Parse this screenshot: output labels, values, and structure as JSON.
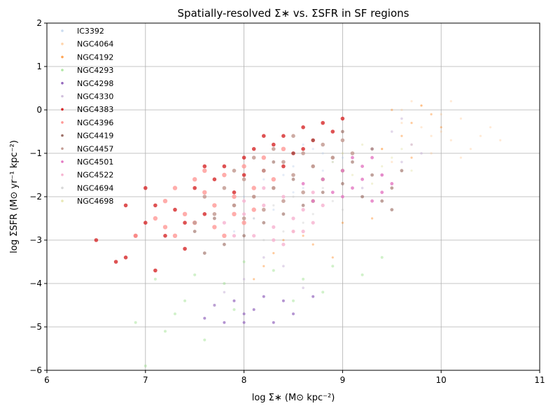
{
  "chart_data": {
    "type": "scatter",
    "title": "Spatially-resolved Σ∗ vs. ΣSFR in SF regions",
    "xlabel": "log Σ∗ (M⊙ kpc⁻²)",
    "ylabel": "log ΣSFR (M⊙ yr⁻¹ kpc⁻²)",
    "xlim": [
      6,
      11
    ],
    "ylim": [
      -6,
      2
    ],
    "xticks": [
      "6",
      "7",
      "8",
      "9",
      "10",
      "11"
    ],
    "yticks": [
      "−6",
      "−5",
      "−4",
      "−3",
      "−2",
      "−1",
      "0",
      "1",
      "2"
    ],
    "grid": true,
    "legend_position": "top-left",
    "series": [
      {
        "name": "IC3392",
        "color": "#aec7e8",
        "alpha": 0.35,
        "size": 1.6,
        "points": [
          [
            8.2,
            -1.6
          ],
          [
            8.5,
            -1.3
          ],
          [
            8.8,
            -1.0
          ],
          [
            8.0,
            -2.0
          ],
          [
            8.6,
            -1.8
          ],
          [
            8.9,
            -1.2
          ],
          [
            8.3,
            -2.3
          ],
          [
            8.7,
            -0.9
          ],
          [
            8.4,
            -1.5
          ],
          [
            9.0,
            -1.1
          ],
          [
            8.1,
            -2.5
          ],
          [
            8.5,
            -1.9
          ],
          [
            7.9,
            -2.8
          ],
          [
            8.8,
            -1.4
          ],
          [
            8.6,
            -0.8
          ]
        ]
      },
      {
        "name": "NGC4064",
        "color": "#ffbb78",
        "alpha": 0.3,
        "size": 1.6,
        "points": [
          [
            9.6,
            -0.3
          ],
          [
            9.8,
            0.1
          ],
          [
            10.0,
            -0.5
          ],
          [
            10.2,
            -0.2
          ],
          [
            9.7,
            -0.8
          ],
          [
            10.4,
            -0.6
          ],
          [
            9.9,
            -1.0
          ],
          [
            10.1,
            0.2
          ],
          [
            9.5,
            -1.2
          ],
          [
            10.3,
            -0.9
          ],
          [
            9.8,
            -0.4
          ],
          [
            10.5,
            -0.4
          ],
          [
            9.6,
            0.0
          ],
          [
            10.0,
            -0.1
          ],
          [
            10.6,
            -0.7
          ],
          [
            9.9,
            -0.6
          ],
          [
            10.2,
            -1.1
          ],
          [
            9.7,
            0.2
          ],
          [
            10.1,
            -0.7
          ],
          [
            9.4,
            -0.9
          ]
        ]
      },
      {
        "name": "NGC4192",
        "color": "#ff7f0e",
        "alpha": 0.4,
        "size": 1.6,
        "points": [
          [
            9.5,
            0.0
          ],
          [
            9.7,
            -0.3
          ],
          [
            9.9,
            -0.1
          ],
          [
            9.6,
            -0.6
          ],
          [
            9.8,
            0.1
          ],
          [
            10.0,
            -0.4
          ],
          [
            9.4,
            -0.9
          ],
          [
            9.7,
            -1.1
          ],
          [
            8.4,
            -3.0
          ],
          [
            8.3,
            -3.3
          ],
          [
            8.6,
            -2.9
          ],
          [
            8.9,
            -3.4
          ],
          [
            9.0,
            -2.6
          ],
          [
            8.2,
            -3.6
          ],
          [
            8.5,
            -2.8
          ],
          [
            9.3,
            -2.5
          ],
          [
            8.1,
            -3.9
          ],
          [
            8.7,
            -3.1
          ]
        ]
      },
      {
        "name": "NGC4293",
        "color": "#98df8a",
        "alpha": 0.45,
        "size": 2.0,
        "points": [
          [
            7.0,
            -5.9
          ],
          [
            7.2,
            -5.1
          ],
          [
            7.4,
            -4.4
          ],
          [
            7.6,
            -5.3
          ],
          [
            7.8,
            -4.0
          ],
          [
            6.9,
            -4.9
          ],
          [
            7.5,
            -3.8
          ],
          [
            8.0,
            -3.5
          ],
          [
            8.3,
            -3.7
          ],
          [
            8.6,
            -3.9
          ],
          [
            8.9,
            -3.6
          ],
          [
            9.2,
            -3.8
          ],
          [
            8.8,
            -4.2
          ],
          [
            8.5,
            -4.4
          ],
          [
            7.3,
            -4.7
          ],
          [
            7.9,
            -4.6
          ],
          [
            7.1,
            -3.9
          ],
          [
            9.4,
            -3.4
          ]
        ]
      },
      {
        "name": "NGC4298",
        "color": "#9467bd",
        "alpha": 0.7,
        "size": 2.0,
        "points": [
          [
            7.7,
            -4.5
          ],
          [
            7.8,
            -4.9
          ],
          [
            7.9,
            -4.4
          ],
          [
            8.0,
            -4.7
          ],
          [
            8.1,
            -4.6
          ],
          [
            8.3,
            -4.9
          ],
          [
            8.5,
            -4.7
          ],
          [
            8.7,
            -4.3
          ],
          [
            7.6,
            -4.8
          ],
          [
            8.2,
            -4.3
          ],
          [
            8.0,
            -4.9
          ],
          [
            8.4,
            -4.4
          ]
        ]
      },
      {
        "name": "NGC4330",
        "color": "#c5b0d5",
        "alpha": 0.5,
        "size": 1.8,
        "points": [
          [
            9.3,
            -0.9
          ],
          [
            9.5,
            -0.5
          ],
          [
            9.6,
            -1.2
          ],
          [
            9.7,
            -0.8
          ],
          [
            9.4,
            -1.5
          ],
          [
            9.6,
            -0.2
          ],
          [
            9.8,
            -1.0
          ],
          [
            9.2,
            -1.8
          ],
          [
            8.2,
            -3.4
          ],
          [
            8.4,
            -3.6
          ],
          [
            7.8,
            -4.2
          ],
          [
            8.6,
            -4.1
          ],
          [
            8.0,
            -3.9
          ],
          [
            7.7,
            -4.5
          ]
        ]
      },
      {
        "name": "NGC4383",
        "color": "#d62728",
        "alpha": 0.8,
        "size": 2.8,
        "points": [
          [
            6.5,
            -3.0
          ],
          [
            6.7,
            -3.5
          ],
          [
            6.8,
            -2.2
          ],
          [
            6.9,
            -2.9
          ],
          [
            7.0,
            -2.6
          ],
          [
            7.1,
            -2.2
          ],
          [
            7.2,
            -2.9
          ],
          [
            7.3,
            -2.3
          ],
          [
            7.4,
            -2.6
          ],
          [
            7.5,
            -1.8
          ],
          [
            7.6,
            -2.4
          ],
          [
            7.7,
            -1.6
          ],
          [
            7.8,
            -1.3
          ],
          [
            7.9,
            -1.9
          ],
          [
            8.0,
            -1.1
          ],
          [
            8.1,
            -0.9
          ],
          [
            8.2,
            -1.4
          ],
          [
            8.3,
            -0.8
          ],
          [
            8.4,
            -0.6
          ],
          [
            8.5,
            -1.0
          ],
          [
            8.6,
            -0.4
          ],
          [
            8.7,
            -0.7
          ],
          [
            8.8,
            -0.3
          ],
          [
            8.9,
            -0.5
          ],
          [
            9.0,
            -0.2
          ],
          [
            8.6,
            -0.9
          ],
          [
            8.4,
            -1.3
          ],
          [
            8.2,
            -0.6
          ],
          [
            8.0,
            -1.5
          ],
          [
            7.6,
            -1.3
          ],
          [
            6.8,
            -3.4
          ],
          [
            7.1,
            -3.7
          ],
          [
            7.4,
            -3.2
          ],
          [
            7.0,
            -1.8
          ]
        ]
      },
      {
        "name": "NGC4396",
        "color": "#ff9896",
        "alpha": 0.8,
        "size": 3.2,
        "points": [
          [
            6.9,
            -2.9
          ],
          [
            7.1,
            -2.5
          ],
          [
            7.2,
            -2.1
          ],
          [
            7.3,
            -1.8
          ],
          [
            7.4,
            -2.4
          ],
          [
            7.5,
            -1.6
          ],
          [
            7.6,
            -1.9
          ],
          [
            7.7,
            -2.2
          ],
          [
            7.8,
            -1.5
          ],
          [
            7.9,
            -2.0
          ],
          [
            8.0,
            -1.3
          ],
          [
            8.1,
            -1.8
          ],
          [
            8.2,
            -1.1
          ],
          [
            8.3,
            -1.6
          ],
          [
            8.4,
            -0.9
          ],
          [
            7.5,
            -2.6
          ],
          [
            7.3,
            -2.9
          ],
          [
            7.7,
            -2.7
          ],
          [
            7.9,
            -2.4
          ],
          [
            8.1,
            -2.3
          ],
          [
            7.2,
            -2.7
          ],
          [
            7.6,
            -1.4
          ],
          [
            8.0,
            -2.6
          ],
          [
            7.8,
            -2.9
          ]
        ]
      },
      {
        "name": "NGC4419",
        "color": "#8c564b",
        "alpha": 0.55,
        "size": 2.4,
        "points": [
          [
            7.5,
            -2.8
          ],
          [
            7.7,
            -2.5
          ],
          [
            7.9,
            -2.2
          ],
          [
            8.1,
            -2.0
          ],
          [
            8.3,
            -1.8
          ],
          [
            8.5,
            -1.6
          ],
          [
            8.7,
            -1.3
          ],
          [
            8.9,
            -1.1
          ],
          [
            9.1,
            -1.2
          ],
          [
            9.3,
            -1.5
          ],
          [
            9.5,
            -1.8
          ],
          [
            9.4,
            -2.1
          ],
          [
            9.2,
            -2.0
          ],
          [
            9.0,
            -1.7
          ],
          [
            8.8,
            -1.9
          ],
          [
            8.6,
            -2.2
          ],
          [
            8.4,
            -2.4
          ],
          [
            8.2,
            -2.6
          ],
          [
            8.0,
            -2.9
          ],
          [
            7.8,
            -3.1
          ],
          [
            8.7,
            -0.7
          ],
          [
            9.0,
            -0.5
          ],
          [
            9.3,
            -0.9
          ],
          [
            8.5,
            -1.0
          ],
          [
            8.3,
            -1.2
          ],
          [
            9.6,
            -1.4
          ],
          [
            9.5,
            -2.3
          ],
          [
            7.6,
            -3.3
          ]
        ]
      },
      {
        "name": "NGC4457",
        "color": "#c49c94",
        "alpha": 0.85,
        "size": 2.8,
        "points": [
          [
            7.6,
            -2.0
          ],
          [
            7.8,
            -1.8
          ],
          [
            8.0,
            -1.6
          ],
          [
            8.2,
            -1.4
          ],
          [
            8.4,
            -1.2
          ],
          [
            8.6,
            -1.0
          ],
          [
            8.8,
            -0.8
          ],
          [
            9.0,
            -0.7
          ],
          [
            7.7,
            -2.4
          ],
          [
            7.9,
            -2.2
          ],
          [
            8.1,
            -2.0
          ],
          [
            8.3,
            -1.8
          ],
          [
            8.5,
            -1.5
          ],
          [
            8.7,
            -1.3
          ],
          [
            8.9,
            -1.1
          ],
          [
            9.1,
            -1.0
          ],
          [
            8.0,
            -2.5
          ],
          [
            8.2,
            -2.3
          ],
          [
            8.4,
            -2.1
          ],
          [
            8.6,
            -1.9
          ],
          [
            8.8,
            -1.6
          ],
          [
            9.0,
            -1.4
          ],
          [
            7.5,
            -2.6
          ],
          [
            8.3,
            -0.9
          ],
          [
            8.1,
            -1.1
          ],
          [
            8.5,
            -0.6
          ],
          [
            7.9,
            -1.4
          ],
          [
            8.7,
            -2.1
          ]
        ]
      },
      {
        "name": "NGC4501",
        "color": "#e377c2",
        "alpha": 0.8,
        "size": 2.4,
        "points": [
          [
            8.8,
            -1.6
          ],
          [
            9.0,
            -1.4
          ],
          [
            9.2,
            -1.3
          ],
          [
            9.4,
            -1.5
          ],
          [
            9.1,
            -1.8
          ],
          [
            8.9,
            -1.9
          ],
          [
            9.3,
            -1.1
          ],
          [
            9.5,
            -1.7
          ],
          [
            8.7,
            -2.1
          ],
          [
            9.0,
            -2.0
          ],
          [
            9.2,
            -1.6
          ],
          [
            9.4,
            -1.9
          ],
          [
            8.6,
            -1.7
          ],
          [
            9.1,
            -1.1
          ],
          [
            9.3,
            -2.1
          ]
        ]
      },
      {
        "name": "NGC4522",
        "color": "#f7b6d2",
        "alpha": 0.85,
        "size": 2.6,
        "points": [
          [
            7.8,
            -2.6
          ],
          [
            8.0,
            -2.4
          ],
          [
            8.2,
            -2.2
          ],
          [
            8.3,
            -2.7
          ],
          [
            8.4,
            -2.0
          ],
          [
            8.5,
            -2.5
          ],
          [
            8.6,
            -2.3
          ],
          [
            8.7,
            -1.9
          ],
          [
            8.1,
            -2.9
          ],
          [
            8.3,
            -3.0
          ],
          [
            8.5,
            -2.8
          ],
          [
            7.9,
            -2.9
          ],
          [
            8.2,
            -1.8
          ],
          [
            8.6,
            -2.8
          ],
          [
            8.4,
            -3.1
          ],
          [
            8.0,
            -2.1
          ],
          [
            8.8,
            -2.2
          ],
          [
            8.7,
            -2.6
          ]
        ]
      },
      {
        "name": "NGC4694",
        "color": "#c7c7c7",
        "alpha": 0.4,
        "size": 1.6,
        "points": [
          [
            8.1,
            -2.5
          ],
          [
            8.3,
            -2.2
          ],
          [
            8.5,
            -2.0
          ],
          [
            8.7,
            -2.4
          ],
          [
            8.9,
            -2.1
          ],
          [
            8.4,
            -2.8
          ],
          [
            8.6,
            -2.6
          ],
          [
            8.2,
            -3.0
          ],
          [
            8.8,
            -1.8
          ],
          [
            9.0,
            -2.3
          ]
        ]
      },
      {
        "name": "NGC4698",
        "color": "#dbdb8d",
        "alpha": 0.35,
        "size": 1.6,
        "points": [
          [
            9.0,
            -1.0
          ],
          [
            9.2,
            -0.8
          ],
          [
            9.4,
            -1.3
          ],
          [
            9.6,
            -0.9
          ],
          [
            9.1,
            -1.5
          ],
          [
            9.3,
            -1.7
          ],
          [
            9.5,
            -1.1
          ],
          [
            9.7,
            -1.4
          ],
          [
            8.9,
            -1.2
          ]
        ]
      }
    ]
  }
}
